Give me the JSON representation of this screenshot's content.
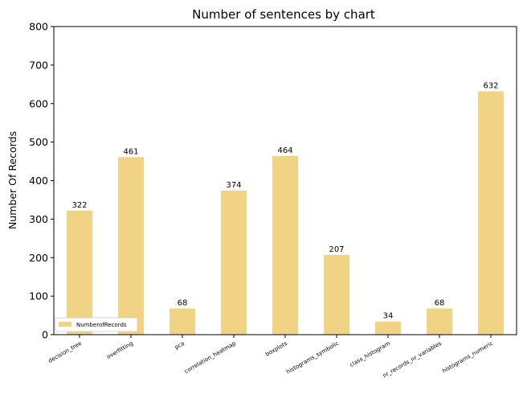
{
  "chart_data": {
    "type": "bar",
    "title": "Number of sentences by chart",
    "xlabel": "",
    "ylabel": "Number Of Records",
    "categories": [
      "decision_tree",
      "overfitting",
      "pca",
      "correlation_heatmap",
      "boxplots",
      "histograms_symbolic",
      "class_histogram",
      "nr_records_nr_variables",
      "histograms_numeric"
    ],
    "series": [
      {
        "name": "NumberofRecords",
        "values": [
          322,
          461,
          68,
          374,
          464,
          207,
          34,
          68,
          632
        ]
      }
    ],
    "yticks": [
      0,
      100,
      200,
      300,
      400,
      500,
      600,
      700,
      800
    ],
    "ylim": [
      0,
      800
    ],
    "grid": false,
    "legend_position": "lower-left",
    "bar_color": "#f0d384",
    "axis_color": "#000000"
  }
}
